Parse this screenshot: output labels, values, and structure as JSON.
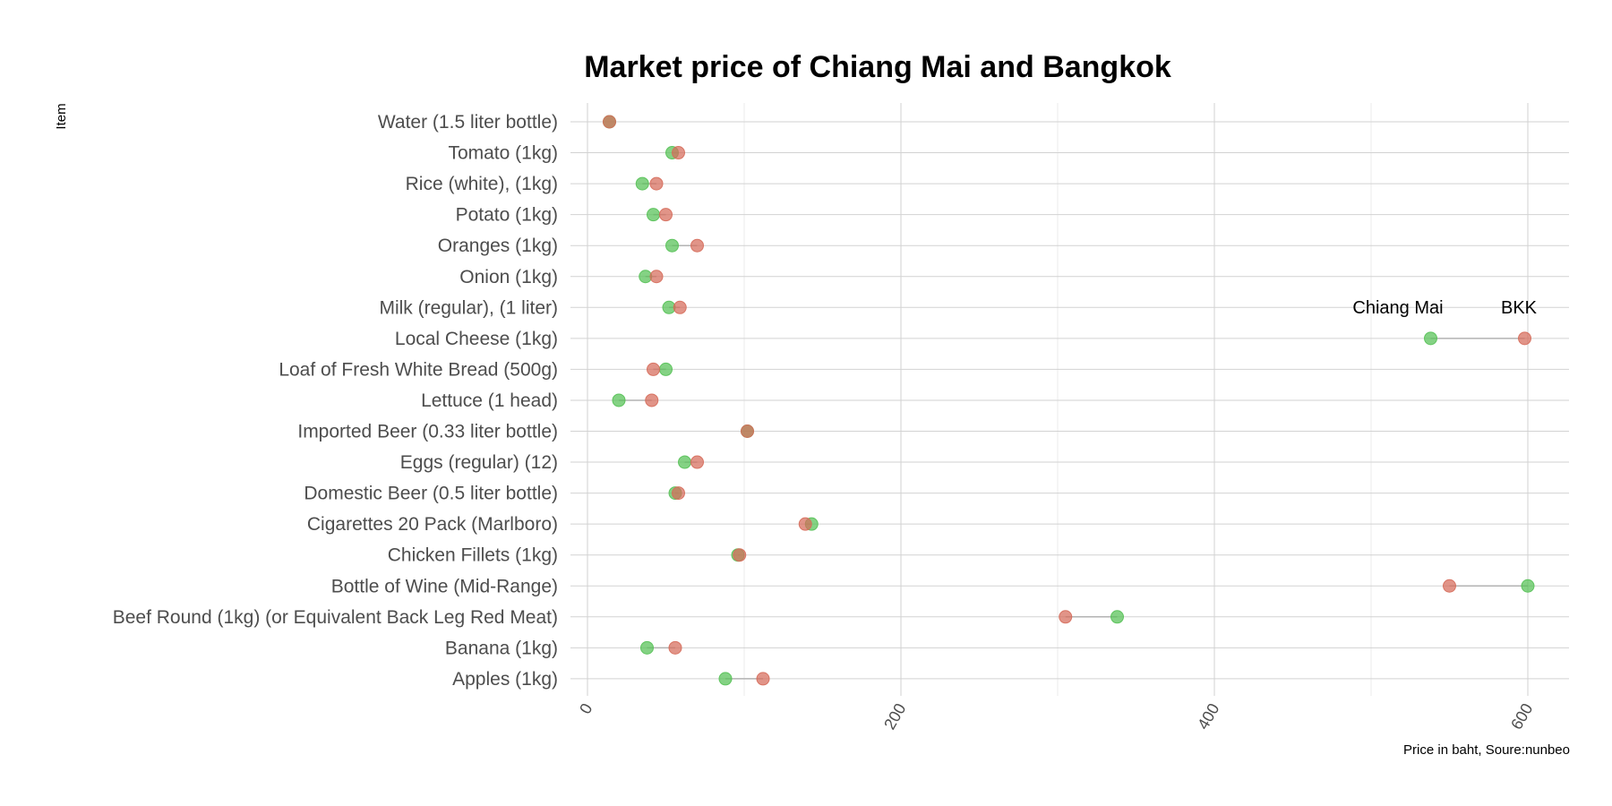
{
  "chart_data": {
    "type": "dumbbell",
    "title": "Market price of Chiang Mai and Bangkok",
    "ylabel": "Item",
    "xlabel": "Price in baht, Soure:nunbeo",
    "xlim": [
      0,
      625
    ],
    "x_ticks": [
      0,
      200,
      400,
      600
    ],
    "x_tick_labels": [
      "0",
      "200",
      "400",
      "600"
    ],
    "grid": true,
    "colors": {
      "chiang_mai": "#55c155",
      "bkk": "#d66b5a",
      "segment": "#b3b3b3"
    },
    "annotations": {
      "chiang_mai_label": "Chiang Mai",
      "bkk_label": "BKK"
    },
    "categories": [
      "Water (1.5 liter bottle)",
      "Tomato (1kg)",
      "Rice (white), (1kg)",
      "Potato (1kg)",
      "Oranges (1kg)",
      "Onion (1kg)",
      "Milk (regular), (1 liter)",
      "Local Cheese (1kg)",
      "Loaf of Fresh White Bread (500g)",
      "Lettuce (1 head)",
      "Imported Beer (0.33 liter bottle)",
      "Eggs (regular) (12)",
      "Domestic Beer (0.5 liter bottle)",
      "Cigarettes 20 Pack (Marlboro)",
      "Chicken Fillets (1kg)",
      "Bottle of Wine (Mid-Range)",
      "Beef Round (1kg) (or Equivalent Back Leg Red Meat)",
      "Banana (1kg)",
      "Apples (1kg)"
    ],
    "series": [
      {
        "name": "Chiang Mai",
        "values": [
          14,
          54,
          35,
          42,
          54,
          37,
          52,
          538,
          50,
          20,
          102,
          62,
          56,
          143,
          96,
          600,
          338,
          38,
          88
        ]
      },
      {
        "name": "BKK",
        "values": [
          14,
          58,
          44,
          50,
          70,
          44,
          59,
          598,
          42,
          41,
          102,
          70,
          58,
          139,
          97,
          550,
          305,
          56,
          112
        ]
      }
    ]
  }
}
